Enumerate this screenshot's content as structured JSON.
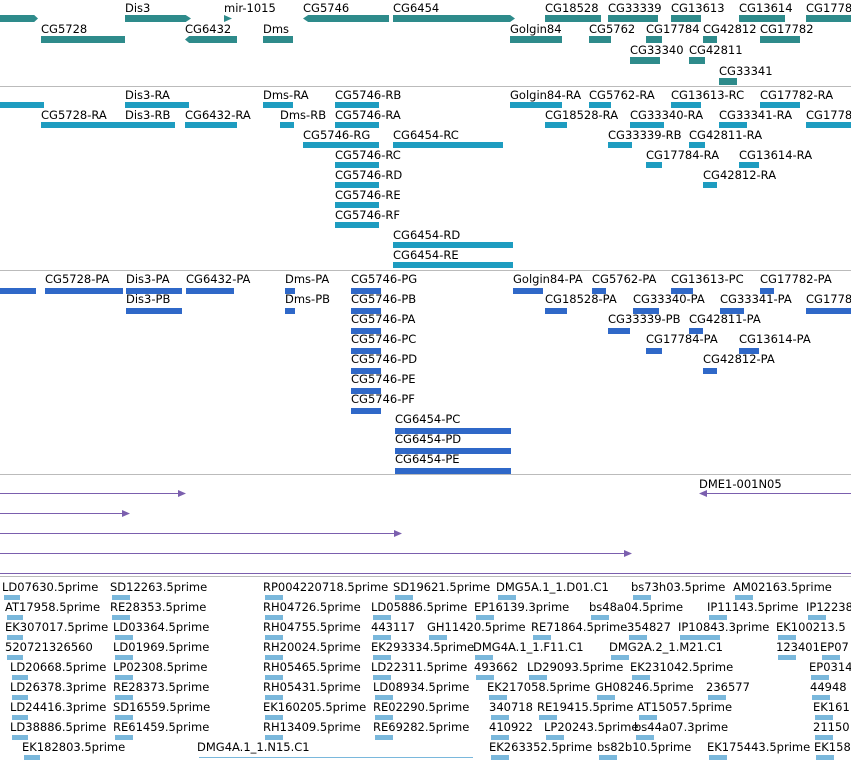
{
  "colors": {
    "gene": "#2e8b8b",
    "transcript": "#1e9cc0",
    "protein": "#2f68c8",
    "clone": "#7b5fae",
    "est": "#7ab8dc",
    "separator": "#bbbbbb"
  },
  "tracks": {
    "genes": {
      "features": [
        {
          "label": ""
        },
        {
          "label": "Dis3"
        },
        {
          "label": "mir-1015"
        },
        {
          "label": "CG5746"
        },
        {
          "label": "CG6454"
        },
        {
          "label": "CG18528"
        },
        {
          "label": "CG33339"
        },
        {
          "label": "CG13613"
        },
        {
          "label": "CG13614"
        },
        {
          "label": "CG1778"
        },
        {
          "label": "CG5728"
        },
        {
          "label": "CG6432"
        },
        {
          "label": "Dms"
        },
        {
          "label": "Golgin84"
        },
        {
          "label": "CG5762"
        },
        {
          "label": "CG17784"
        },
        {
          "label": "CG42812"
        },
        {
          "label": "CG17782"
        },
        {
          "label": "CG33340"
        },
        {
          "label": "CG42811"
        },
        {
          "label": "CG33341"
        }
      ]
    },
    "transcripts": {
      "features": [
        {
          "label": ""
        },
        {
          "label": "Dis3-RA"
        },
        {
          "label": "Dms-RA"
        },
        {
          "label": "CG5746-RB"
        },
        {
          "label": "Golgin84-RA"
        },
        {
          "label": "CG5762-RA"
        },
        {
          "label": "CG13613-RC"
        },
        {
          "label": "CG17782-RA"
        },
        {
          "label": "CG5728-RA"
        },
        {
          "label": "Dis3-RB"
        },
        {
          "label": "CG6432-RA"
        },
        {
          "label": "Dms-RB"
        },
        {
          "label": "CG5746-RA"
        },
        {
          "label": "CG18528-RA"
        },
        {
          "label": "CG33340-RA"
        },
        {
          "label": "CG33341-RA"
        },
        {
          "label": "CG1778"
        },
        {
          "label": "CG5746-RG"
        },
        {
          "label": "CG6454-RC"
        },
        {
          "label": "CG33339-RB"
        },
        {
          "label": "CG42811-RA"
        },
        {
          "label": "CG5746-RC"
        },
        {
          "label": "CG17784-RA"
        },
        {
          "label": "CG13614-RA"
        },
        {
          "label": "CG5746-RD"
        },
        {
          "label": "CG42812-RA"
        },
        {
          "label": "CG5746-RE"
        },
        {
          "label": "CG5746-RF"
        },
        {
          "label": "CG6454-RD"
        },
        {
          "label": "CG6454-RE"
        }
      ]
    },
    "proteins": {
      "features": [
        {
          "label": "CG5728-PA"
        },
        {
          "label": "Dis3-PA"
        },
        {
          "label": "CG6432-PA"
        },
        {
          "label": "Dms-PA"
        },
        {
          "label": "CG5746-PG"
        },
        {
          "label": "Golgin84-PA"
        },
        {
          "label": "CG5762-PA"
        },
        {
          "label": "CG13613-PC"
        },
        {
          "label": "CG17782-PA"
        },
        {
          "label": "Dis3-PB"
        },
        {
          "label": "Dms-PB"
        },
        {
          "label": "CG5746-PB"
        },
        {
          "label": "CG18528-PA"
        },
        {
          "label": "CG33340-PA"
        },
        {
          "label": "CG33341-PA"
        },
        {
          "label": "CG1778"
        },
        {
          "label": "CG5746-PA"
        },
        {
          "label": "CG33339-PB"
        },
        {
          "label": "CG42811-PA"
        },
        {
          "label": "CG5746-PC"
        },
        {
          "label": "CG17784-PA"
        },
        {
          "label": "CG13614-PA"
        },
        {
          "label": "CG5746-PD"
        },
        {
          "label": "CG42812-PA"
        },
        {
          "label": "CG5746-PE"
        },
        {
          "label": "CG5746-PF"
        },
        {
          "label": "CG6454-PC"
        },
        {
          "label": "CG6454-PD"
        },
        {
          "label": "CG6454-PE"
        }
      ]
    },
    "clones": {
      "features": [
        {
          "label": "DME1-001N05"
        }
      ]
    },
    "ests": {
      "rows": [
        [
          "LD07630.5prime",
          "SD12263.5prime",
          "RP004220718.5prime",
          "SD19621.5prime",
          "DMG5A.1_1.D01.C1",
          "bs73h03.5prime",
          "AM02163.5prime"
        ],
        [
          "AT17958.5prime",
          "RE28353.5prime",
          "RH04726.5prime",
          "LD05886.5prime",
          "EP16139.3prime",
          "bs48a04.5prime",
          "IP11143.5prime",
          "IP12238"
        ],
        [
          "EK307017.5prime",
          "LD03364.5prime",
          "RH04755.5prime",
          "443117",
          "GH11420.5prime",
          "RE71864.5prime",
          "354827",
          "IP10843.3prime",
          "EK100213.5"
        ],
        [
          "520721326560",
          "LD01969.5prime",
          "RH20024.5prime",
          "EK293334.5prime",
          "DMG4A.1_1.F11.C1",
          "DMG2A.2_1.M21.C1",
          "123401",
          "EP07"
        ],
        [
          "LD20668.5prime",
          "LP02308.5prime",
          "RH05465.5prime",
          "LD22311.5prime",
          "493662",
          "LD29093.5prime",
          "EK231042.5prime",
          "EP0314"
        ],
        [
          "LD26378.3prime",
          "RE28373.5prime",
          "RH05431.5prime",
          "LD08934.5prime",
          "EK217058.5prime",
          "GH08246.5prime",
          "236577",
          "44948"
        ],
        [
          "LD24416.3prime",
          "SD16559.5prime",
          "EK160205.5prime",
          "RE02290.5prime",
          "340718",
          "RE19415.5prime",
          "AT15057.5prime",
          "EK161"
        ],
        [
          "LD38886.5prime",
          "RE61459.5prime",
          "RH13409.5prime",
          "RE69282.5prime",
          "410922",
          "LP20243.5prime",
          "bs44a07.3prime",
          "21150"
        ],
        [
          "EK182803.5prime",
          "DMG4A.1_1.N15.C1",
          "EK263352.5prime",
          "bs82b10.5prime",
          "EK175443.5prime",
          "EK158"
        ]
      ]
    }
  }
}
